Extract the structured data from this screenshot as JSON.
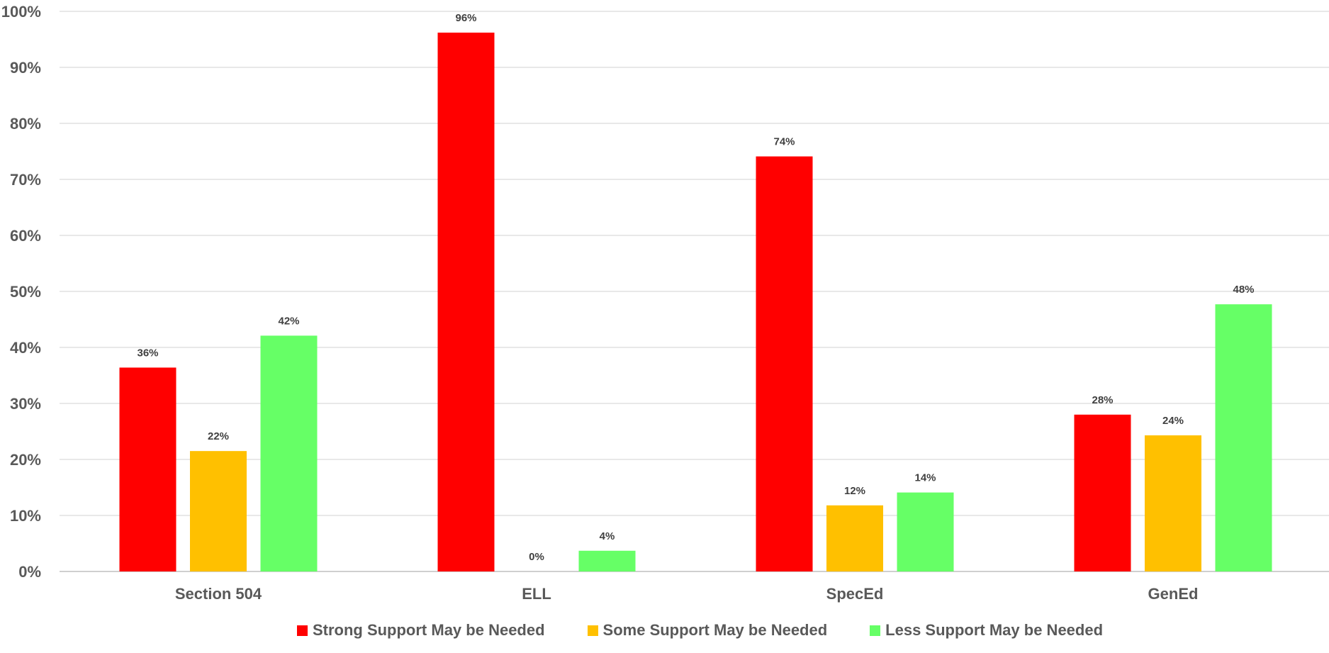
{
  "chart_data": {
    "type": "bar",
    "title": "",
    "xlabel": "",
    "ylabel": "",
    "ylim": [
      0,
      100
    ],
    "y_ticks": [
      "0%",
      "10%",
      "20%",
      "30%",
      "40%",
      "50%",
      "60%",
      "70%",
      "80%",
      "90%",
      "100%"
    ],
    "grid": true,
    "legend_position": "bottom",
    "categories": [
      "Section 504",
      "ELL",
      "SpecEd",
      "GenEd"
    ],
    "series": [
      {
        "name": "Strong Support May be Needed",
        "color": "#ff0000",
        "values": [
          36.4,
          96.2,
          74.1,
          28.0
        ],
        "labels": [
          "36%",
          "96%",
          "74%",
          "28%"
        ]
      },
      {
        "name": "Some Support May be Needed",
        "color": "#ffc000",
        "values": [
          21.5,
          0,
          11.8,
          24.3
        ],
        "labels": [
          "22%",
          "0%",
          "12%",
          "24%"
        ]
      },
      {
        "name": "Less Support May be Needed",
        "color": "#66ff66",
        "values": [
          42.1,
          3.7,
          14.1,
          47.7
        ],
        "labels": [
          "42%",
          "4%",
          "14%",
          "48%"
        ]
      }
    ]
  }
}
